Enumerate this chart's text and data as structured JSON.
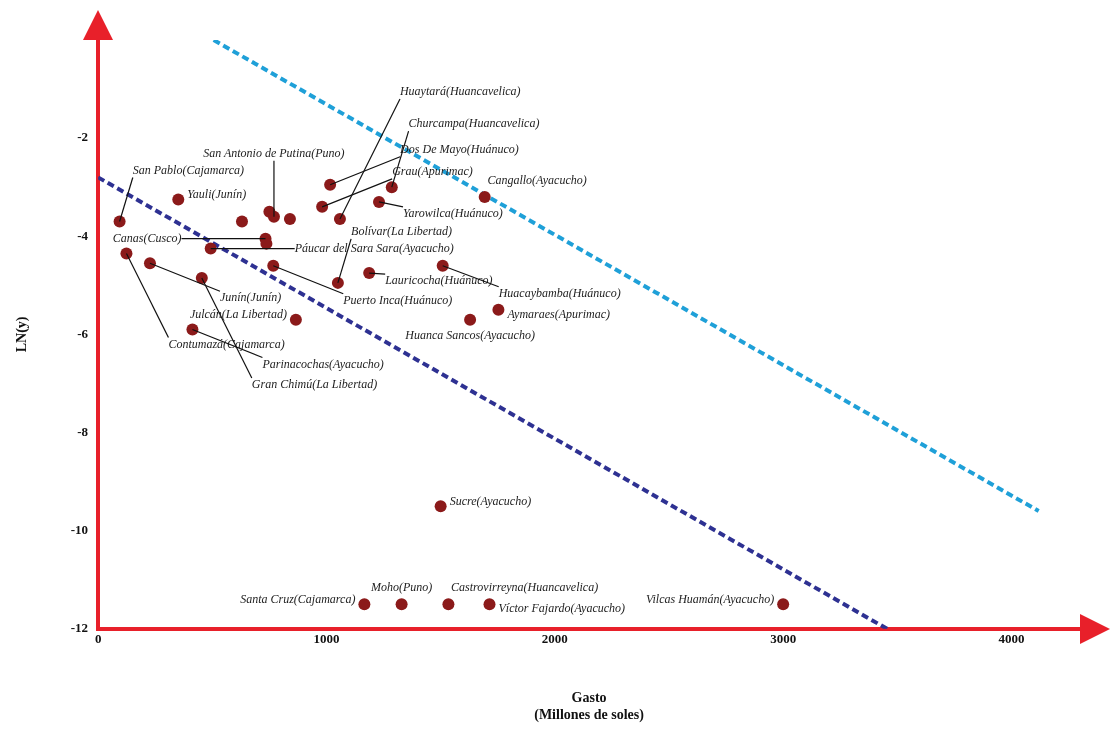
{
  "chart_data": {
    "type": "scatter",
    "xlabel": "Gasto\n(Millones de soles)",
    "ylabel": "LN(y)",
    "xlim": [
      0,
      4300
    ],
    "ylim": [
      -12,
      0
    ],
    "xticks": [
      0,
      1000,
      2000,
      3000,
      4000
    ],
    "yticks": [
      -12,
      -10,
      -8,
      -6,
      -4,
      -2
    ],
    "grid": false,
    "legend": false,
    "marker": "circle",
    "series": [
      {
        "type": "scatter",
        "color": "#8b1a1a",
        "x": [
          94,
          351,
          124,
          227,
          493,
          454,
          413,
          630,
          750,
          770,
          840,
          733,
          737,
          767,
          1050,
          1187,
          981,
          1016,
          1286,
          1230,
          1059,
          1693,
          1509,
          1753,
          1629,
          866,
          1500,
          1166,
          1329,
          1534,
          1714,
          3000
        ],
        "values": [
          -3.7,
          -3.25,
          -4.35,
          -4.55,
          -4.25,
          -4.85,
          -5.9,
          -3.7,
          -3.5,
          -3.6,
          -3.65,
          -4.05,
          -4.15,
          -4.6,
          -4.95,
          -4.75,
          -3.4,
          -2.95,
          -3.0,
          -3.3,
          -3.65,
          -3.2,
          -4.6,
          -5.5,
          -5.7,
          -5.7,
          -9.5,
          -11.5,
          -11.5,
          -11.5,
          -11.5,
          -11.5
        ]
      },
      {
        "type": "line",
        "color": "#2e3192",
        "line_style": "dashed",
        "marker": "none",
        "x": [
          0,
          3455
        ],
        "values": [
          -2.8,
          -12
        ]
      },
      {
        "type": "line",
        "color": "#1fa0d8",
        "line_style": "dashed",
        "marker": "none",
        "x": [
          506,
          4119
        ],
        "values": [
          0,
          -9.6
        ]
      }
    ],
    "annotations": [
      {
        "text": "San Pablo(Cajamarca)",
        "x": 94,
        "y": -3.7
      },
      {
        "text": "Yauli(Junín)",
        "x": 351,
        "y": -3.25
      },
      {
        "text": "Contumazá(Cajamarca)",
        "x": 124,
        "y": -4.35
      },
      {
        "text": "Junín(Junín)",
        "x": 227,
        "y": -4.55
      },
      {
        "text": "Páucar del Sara Sara(Ayacucho)",
        "x": 493,
        "y": -4.25
      },
      {
        "text": "Gran Chimú(La Libertad)",
        "x": 454,
        "y": -4.85
      },
      {
        "text": "Parinacochas(Ayacucho)",
        "x": 413,
        "y": -5.9
      },
      {
        "text": "San Antonio de Putina(Puno)",
        "x": 770,
        "y": -3.6
      },
      {
        "text": "Canas(Cusco)",
        "x": 733,
        "y": -4.05
      },
      {
        "text": "Puerto Inca(Huánuco)",
        "x": 767,
        "y": -4.6
      },
      {
        "text": "Bolívar(La Libertad)",
        "x": 1050,
        "y": -4.95
      },
      {
        "text": "Lauricocha(Huánuco)",
        "x": 1187,
        "y": -4.75
      },
      {
        "text": "Grau(Apurimac)",
        "x": 981,
        "y": -3.4
      },
      {
        "text": "Dos De Mayo(Huánuco)",
        "x": 1016,
        "y": -2.95
      },
      {
        "text": "Churcampa(Huancavelica)",
        "x": 1286,
        "y": -3.0
      },
      {
        "text": "Yarowilca(Huánuco)",
        "x": 1230,
        "y": -3.3
      },
      {
        "text": "Huaytará(Huancavelica)",
        "x": 1059,
        "y": -3.65
      },
      {
        "text": "Cangallo(Ayacucho)",
        "x": 1693,
        "y": -3.2
      },
      {
        "text": "Huacaybamba(Huánuco)",
        "x": 1509,
        "y": -4.6
      },
      {
        "text": "Aymaraes(Apurimac)",
        "x": 1753,
        "y": -5.5
      },
      {
        "text": "Huanca Sancos(Ayacucho)",
        "x": 1629,
        "y": -5.7
      },
      {
        "text": "Julcán(La Libertad)",
        "x": 866,
        "y": -5.7
      },
      {
        "text": "Sucre(Ayacucho)",
        "x": 1500,
        "y": -9.5
      },
      {
        "text": "Santa Cruz(Cajamarca)",
        "x": 1166,
        "y": -11.5
      },
      {
        "text": "Moho(Puno)",
        "x": 1329,
        "y": -11.5
      },
      {
        "text": "Castrovirreyna(Huancavelica)",
        "x": 1534,
        "y": -11.5
      },
      {
        "text": "Víctor Fajardo(Ayacucho)",
        "x": 1714,
        "y": -11.5
      },
      {
        "text": "Vilcas Huamán(Ayacucho)",
        "x": 3000,
        "y": -11.5
      }
    ]
  }
}
